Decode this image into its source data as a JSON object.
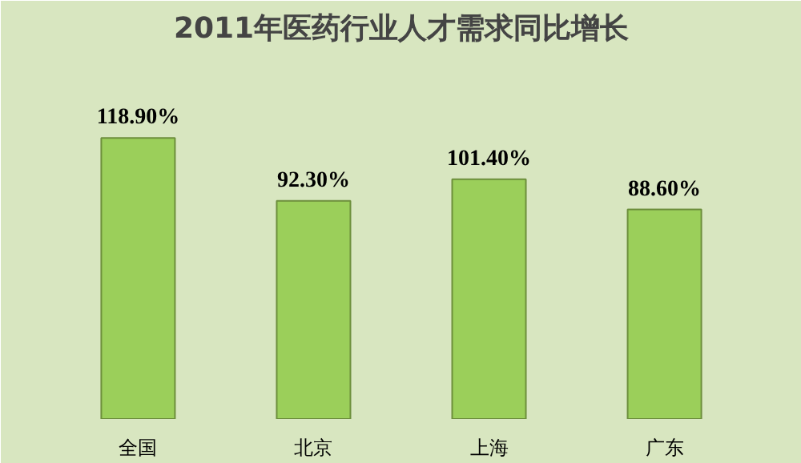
{
  "chart_data": {
    "type": "bar",
    "title": "2011年医药行业人才需求同比增长",
    "categories": [
      "全国",
      "北京",
      "上海",
      "广东"
    ],
    "values": [
      118.9,
      92.3,
      101.4,
      88.6
    ],
    "value_labels": [
      "118.90%",
      "92.30%",
      "101.40%",
      "88.60%"
    ],
    "color": "#9bcf5a",
    "grid": false,
    "tick_labels": "x"
  }
}
